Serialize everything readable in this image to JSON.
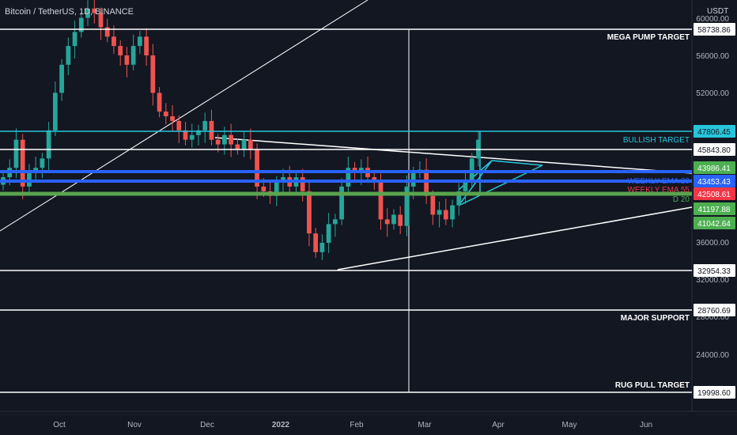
{
  "header": {
    "title": "Bitcoin / TetherUS, 1D, BINANCE",
    "currency": "USDT"
  },
  "chart_data": {
    "type": "candlestick",
    "symbol": "Bitcoin / TetherUS",
    "interval": "1D",
    "exchange": "BINANCE",
    "ylim": [
      19000,
      61000
    ],
    "x_ticks": [
      "Oct",
      "Nov",
      "Dec",
      "2022",
      "Feb",
      "Mar",
      "Apr",
      "May",
      "Jun"
    ],
    "y_ticks": [
      "60000.00",
      "56000.00",
      "52000.00",
      "36000.00",
      "32000.00",
      "28000.00",
      "24000.00"
    ],
    "colors": {
      "up": "#26a69a",
      "down": "#ef5350",
      "background": "#131722"
    },
    "candles_close_approx": [
      43000,
      44000,
      47000,
      42000,
      43500,
      44000,
      45000,
      48000,
      52000,
      55000,
      57000,
      58500,
      60000,
      61000,
      60500,
      59000,
      58000,
      57000,
      56000,
      55000,
      57000,
      58000,
      56000,
      52000,
      50000,
      49500,
      49000,
      48000,
      47000,
      47500,
      48000,
      49000,
      47000,
      46500,
      47500,
      46500,
      46000,
      47000,
      46000,
      42000,
      41500,
      41000,
      42500,
      43000,
      42000,
      43000,
      41500,
      37000,
      35000,
      36000,
      38000,
      38500,
      42000,
      44000,
      43500,
      44000,
      43000,
      42500,
      38500,
      38000,
      39000,
      37800,
      42000,
      43500,
      43800,
      41000,
      39000,
      39500,
      38500,
      40000,
      41500,
      42500,
      45000,
      47000
    ],
    "horizontal_levels": [
      {
        "label": "MEGA PUMP TARGET",
        "price": "58738.86",
        "color": "#ffffff"
      },
      {
        "label": "BULLISH TARGET",
        "price": "47806.45",
        "color": "#26c6da"
      },
      {
        "label": "",
        "price": "45843.80",
        "color": "#ffffff"
      },
      {
        "label": "",
        "price": "43986.41",
        "color": "#2962ff"
      },
      {
        "label": "WEEKLY EMA 20",
        "price": "43453.43",
        "color": "#2962ff"
      },
      {
        "label": "WEEKLY EMA 55",
        "price": "42508.61",
        "color": "#f23645"
      },
      {
        "label": "D 20",
        "price": "41197.88",
        "color": "#4caf50"
      },
      {
        "label": "",
        "price": "32954.33",
        "color": "#ffffff"
      },
      {
        "label": "MAJOR SUPPORT",
        "price": "28760.69",
        "color": "#ffffff"
      },
      {
        "label": "RUG PULL TARGET",
        "price": "19998.60",
        "color": "#ffffff"
      }
    ],
    "price_badges": [
      {
        "price": "58738.86",
        "bg": "#ffffff",
        "fg": "#131722"
      },
      {
        "price": "47806.45",
        "bg": "#26c6da",
        "fg": "#131722"
      },
      {
        "price": "45843.80",
        "bg": "#ffffff",
        "fg": "#131722"
      },
      {
        "price": "43986.41",
        "bg": "#4caf50",
        "fg": "#ffffff"
      },
      {
        "price": "43453.43",
        "bg": "#2962ff",
        "fg": "#ffffff"
      },
      {
        "price": "42508.61",
        "bg": "#f23645",
        "fg": "#ffffff"
      },
      {
        "price": "41197.88",
        "bg": "#4caf50",
        "fg": "#ffffff"
      },
      {
        "price": "41042.64",
        "bg": "#4caf50",
        "fg": "#ffffff"
      },
      {
        "price": "32954.33",
        "bg": "#ffffff",
        "fg": "#131722"
      },
      {
        "price": "28760.69",
        "bg": "#ffffff",
        "fg": "#131722"
      },
      {
        "price": "19998.60",
        "bg": "#ffffff",
        "fg": "#131722"
      }
    ]
  }
}
